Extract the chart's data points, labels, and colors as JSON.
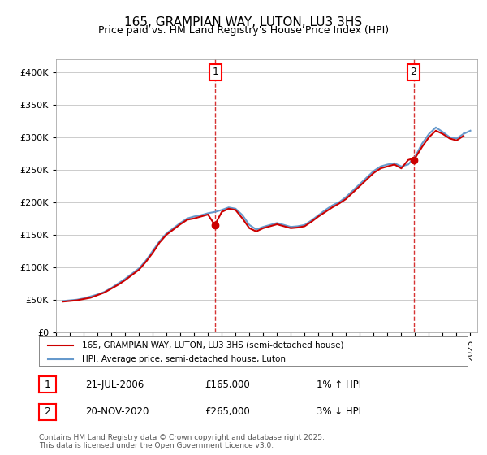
{
  "title": "165, GRAMPIAN WAY, LUTON, LU3 3HS",
  "subtitle": "Price paid vs. HM Land Registry's House Price Index (HPI)",
  "hpi_color": "#6699cc",
  "price_color": "#cc0000",
  "dashed_color": "#cc0000",
  "background_color": "#ffffff",
  "ylim": [
    0,
    420000
  ],
  "yticks": [
    0,
    50000,
    100000,
    150000,
    200000,
    250000,
    300000,
    350000,
    400000
  ],
  "ytick_labels": [
    "£0",
    "£50K",
    "£100K",
    "£150K",
    "£200K",
    "£250K",
    "£300K",
    "£350K",
    "£400K"
  ],
  "legend_entries": [
    "165, GRAMPIAN WAY, LUTON, LU3 3HS (semi-detached house)",
    "HPI: Average price, semi-detached house, Luton"
  ],
  "annotation1": {
    "num": "1",
    "date": "21-JUL-2006",
    "price": "£165,000",
    "hpi_change": "1% ↑ HPI",
    "x": 2006.54
  },
  "annotation2": {
    "num": "2",
    "date": "20-NOV-2020",
    "price": "£265,000",
    "hpi_change": "3% ↓ HPI",
    "x": 2020.89
  },
  "footnote": "Contains HM Land Registry data © Crown copyright and database right 2025.\nThis data is licensed under the Open Government Licence v3.0.",
  "hpi_data": {
    "years": [
      1995.5,
      1996.0,
      1996.5,
      1997.0,
      1997.5,
      1998.0,
      1998.5,
      1999.0,
      1999.5,
      2000.0,
      2000.5,
      2001.0,
      2001.5,
      2002.0,
      2002.5,
      2003.0,
      2003.5,
      2004.0,
      2004.5,
      2005.0,
      2005.5,
      2006.0,
      2006.5,
      2007.0,
      2007.5,
      2008.0,
      2008.5,
      2009.0,
      2009.5,
      2010.0,
      2010.5,
      2011.0,
      2011.5,
      2012.0,
      2012.5,
      2013.0,
      2013.5,
      2014.0,
      2014.5,
      2015.0,
      2015.5,
      2016.0,
      2016.5,
      2017.0,
      2017.5,
      2018.0,
      2018.5,
      2019.0,
      2019.5,
      2020.0,
      2020.5,
      2021.0,
      2021.5,
      2022.0,
      2022.5,
      2023.0,
      2023.5,
      2024.0,
      2024.5,
      2025.0
    ],
    "values": [
      48000,
      49000,
      50000,
      52000,
      55000,
      58000,
      62000,
      68000,
      75000,
      82000,
      90000,
      98000,
      110000,
      125000,
      140000,
      152000,
      160000,
      168000,
      175000,
      178000,
      180000,
      183000,
      185000,
      188000,
      192000,
      190000,
      180000,
      165000,
      158000,
      162000,
      165000,
      168000,
      165000,
      162000,
      163000,
      165000,
      172000,
      180000,
      188000,
      195000,
      200000,
      208000,
      218000,
      228000,
      238000,
      248000,
      255000,
      258000,
      260000,
      255000,
      258000,
      270000,
      290000,
      305000,
      315000,
      308000,
      300000,
      298000,
      305000,
      310000
    ]
  },
  "price_data": {
    "years": [
      1995.5,
      1996.0,
      1996.5,
      1997.0,
      1997.5,
      1998.0,
      1998.5,
      1999.0,
      1999.5,
      2000.0,
      2000.5,
      2001.0,
      2001.5,
      2002.0,
      2002.5,
      2003.0,
      2003.5,
      2004.0,
      2004.5,
      2005.0,
      2005.5,
      2006.0,
      2006.5,
      2007.0,
      2007.5,
      2008.0,
      2008.5,
      2009.0,
      2009.5,
      2010.0,
      2010.5,
      2011.0,
      2011.5,
      2012.0,
      2012.5,
      2013.0,
      2013.5,
      2014.0,
      2014.5,
      2015.0,
      2015.5,
      2016.0,
      2016.5,
      2017.0,
      2017.5,
      2018.0,
      2018.5,
      2019.0,
      2019.5,
      2020.0,
      2020.5,
      2021.0,
      2021.5,
      2022.0,
      2022.5,
      2023.0,
      2023.5,
      2024.0,
      2024.5
    ],
    "values": [
      47000,
      48000,
      49000,
      51000,
      53000,
      57000,
      61000,
      67000,
      73000,
      80000,
      88000,
      96000,
      108000,
      122000,
      138000,
      150000,
      158000,
      166000,
      173000,
      175000,
      178000,
      181000,
      165000,
      185000,
      190000,
      188000,
      175000,
      160000,
      155000,
      160000,
      163000,
      166000,
      163000,
      160000,
      161000,
      163000,
      170000,
      178000,
      185000,
      192000,
      198000,
      205000,
      215000,
      225000,
      235000,
      245000,
      252000,
      255000,
      258000,
      252000,
      265000,
      268000,
      285000,
      300000,
      310000,
      305000,
      298000,
      295000,
      302000
    ]
  },
  "sale1_x": 2006.54,
  "sale1_y": 165000,
  "sale2_x": 2020.89,
  "sale2_y": 265000,
  "xmin": 1995,
  "xmax": 2025.5
}
